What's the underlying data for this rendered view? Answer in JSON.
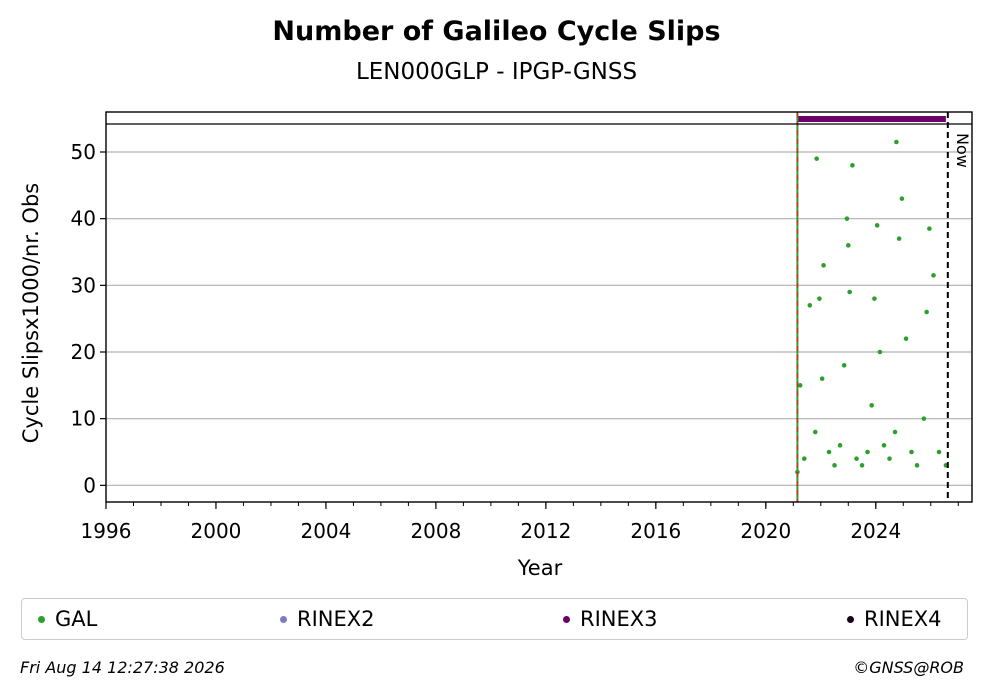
{
  "chart_data": {
    "type": "scatter",
    "title": "Number of Galileo Cycle Slips",
    "subtitle": "LEN000GLP - IPGP-GNSS",
    "xlabel": "Year",
    "ylabel": "Cycle Slipsx1000/nr. Obs",
    "xlim": [
      1996,
      2027.5
    ],
    "ylim": [
      -2.5,
      56
    ],
    "x_ticks": [
      "1996",
      "2000",
      "2004",
      "2008",
      "2012",
      "2016",
      "2020",
      "2024"
    ],
    "y_ticks": [
      "0",
      "10",
      "20",
      "30",
      "40",
      "50"
    ],
    "grid": "horizontal",
    "legend_position": "bottom",
    "legend": [
      {
        "name": "GAL",
        "color": "#2ca02c"
      },
      {
        "name": "RINEX2",
        "color": "#7b7bc0"
      },
      {
        "name": "RINEX3",
        "color": "#6a0068"
      },
      {
        "name": "RINEX4",
        "color": "#1a0018"
      }
    ],
    "rinex3_period": [
      "2021.15",
      "2026.55"
    ],
    "series": [
      {
        "name": "GAL",
        "color": "#2ca02c",
        "x": [
          2021.15,
          2021.25,
          2021.4,
          2021.6,
          2021.8,
          2021.85,
          2021.95,
          2022.05,
          2022.1,
          2022.3,
          2022.5,
          2022.7,
          2022.85,
          2022.95,
          2023.0,
          2023.05,
          2023.15,
          2023.3,
          2023.5,
          2023.7,
          2023.85,
          2023.95,
          2024.05,
          2024.15,
          2024.3,
          2024.5,
          2024.7,
          2024.75,
          2024.85,
          2024.95,
          2025.1,
          2025.3,
          2025.5,
          2025.75,
          2025.85,
          2025.95,
          2026.1,
          2026.3,
          2026.55
        ],
        "y": [
          2.0,
          15.0,
          4.0,
          27.0,
          8.0,
          49.0,
          28.0,
          16.0,
          33.0,
          5.0,
          3.0,
          6.0,
          18.0,
          40.0,
          36.0,
          29.0,
          48.0,
          4.0,
          3.0,
          5.0,
          12.0,
          28.0,
          39.0,
          20.0,
          6.0,
          4.0,
          8.0,
          51.5,
          37.0,
          43.0,
          22.0,
          5.0,
          3.0,
          10.0,
          26.0,
          38.5,
          31.5,
          5.0,
          3.0
        ]
      }
    ],
    "now_label": "Now",
    "now_year": "2026.62",
    "generated": "Fri Aug 14 12:27:38 2026",
    "credit": "©GNSS@ROB"
  }
}
